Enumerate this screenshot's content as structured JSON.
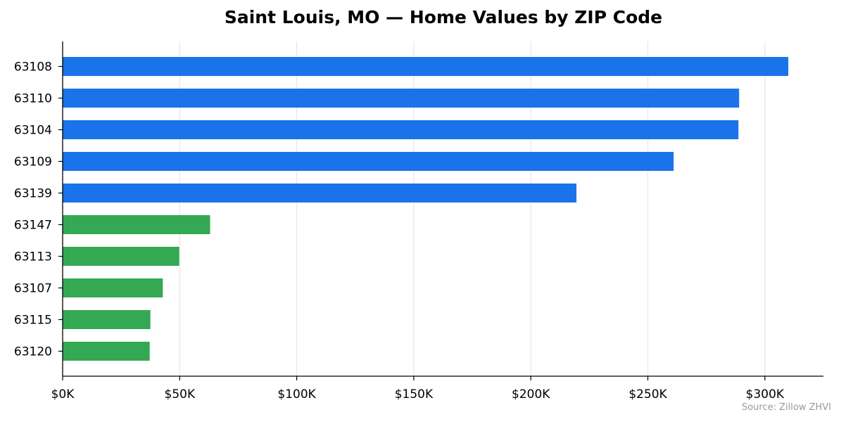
{
  "chart_data": {
    "type": "bar",
    "orientation": "horizontal",
    "title": "Saint Louis, MO — Home Values by ZIP Code",
    "xlabel": "",
    "ylabel": "",
    "categories": [
      "63108",
      "63110",
      "63104",
      "63109",
      "63139",
      "63147",
      "63113",
      "63107",
      "63115",
      "63120"
    ],
    "values": [
      310000,
      289000,
      288700,
      261000,
      219500,
      63000,
      49800,
      42800,
      37500,
      37200
    ],
    "bar_colors": [
      "#1a73e8",
      "#1a73e8",
      "#1a73e8",
      "#1a73e8",
      "#1a73e8",
      "#34a853",
      "#34a853",
      "#34a853",
      "#34a853",
      "#34a853"
    ],
    "xlim": [
      0,
      325000
    ],
    "x_ticks": [
      0,
      50000,
      100000,
      150000,
      200000,
      250000,
      300000
    ],
    "x_tick_labels": [
      "$0K",
      "$50K",
      "$100K",
      "$150K",
      "$200K",
      "$250K",
      "$300K"
    ],
    "grid": "vertical",
    "legend": "none"
  },
  "source_note": "Source: Zillow ZHVI"
}
